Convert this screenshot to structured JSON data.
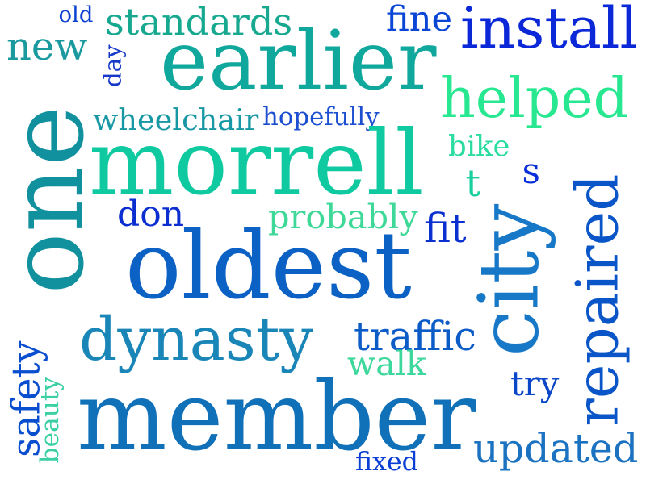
{
  "background": "#ffffff",
  "words": [
    {
      "text": "old",
      "color": "#0a3fd0"
    },
    {
      "text": "standards",
      "color": "#17a890"
    },
    {
      "text": "fine",
      "color": "#0a46d6"
    },
    {
      "text": "install",
      "color": "#0a28d8"
    },
    {
      "text": "new",
      "color": "#1a9a9e"
    },
    {
      "text": "earlier",
      "color": "#10a89c"
    },
    {
      "text": "day",
      "color": "#1638c8"
    },
    {
      "text": "helped",
      "color": "#27e890"
    },
    {
      "text": "one",
      "color": "#11919e"
    },
    {
      "text": "wheelchair",
      "color": "#1898a4"
    },
    {
      "text": "hopefully",
      "color": "#1c4ed0"
    },
    {
      "text": "morrell",
      "color": "#0fcaa0"
    },
    {
      "text": "bike",
      "color": "#2adca0"
    },
    {
      "text": "s",
      "color": "#0a2ed8"
    },
    {
      "text": "t",
      "color": "#1acf9e"
    },
    {
      "text": "don",
      "color": "#0a2ed0"
    },
    {
      "text": "probably",
      "color": "#3ed898"
    },
    {
      "text": "fit",
      "color": "#0a30d0"
    },
    {
      "text": "city",
      "color": "#1878c8"
    },
    {
      "text": "repaired",
      "color": "#0a56c8"
    },
    {
      "text": "oldest",
      "color": "#0c62c4"
    },
    {
      "text": "dynasty",
      "color": "#1a86b8"
    },
    {
      "text": "traffic",
      "color": "#0c5cc8"
    },
    {
      "text": "walk",
      "color": "#3ed89c"
    },
    {
      "text": "try",
      "color": "#0a46c8"
    },
    {
      "text": "safety",
      "color": "#0a4ed0"
    },
    {
      "text": "beauty",
      "color": "#3ad0a4"
    },
    {
      "text": "member",
      "color": "#1070b8"
    },
    {
      "text": "updated",
      "color": "#1a72c0"
    },
    {
      "text": "fixed",
      "color": "#0a3ed4"
    }
  ]
}
